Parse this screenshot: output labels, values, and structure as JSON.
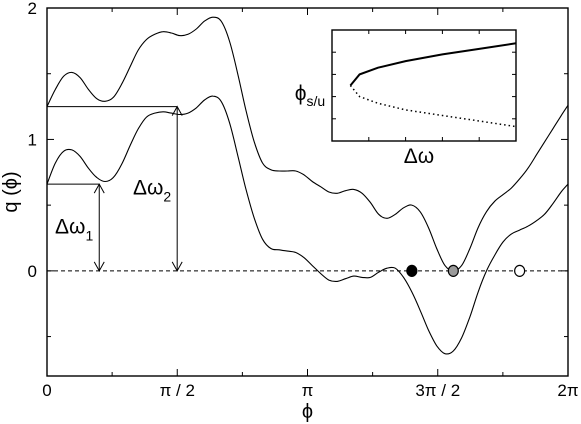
{
  "chart_data": {
    "type": "line",
    "xlabel": "ϕ",
    "ylabel": "q (ϕ)",
    "xlim": [
      0,
      6.2832
    ],
    "ylim": [
      -0.8,
      2.0
    ],
    "x_ticks": [
      {
        "value": 0,
        "label": "0"
      },
      {
        "value": 1.5708,
        "label": "π / 2"
      },
      {
        "value": 3.1416,
        "label": "π"
      },
      {
        "value": 4.7124,
        "label": "3π / 2"
      },
      {
        "value": 6.2832,
        "label": "2π"
      }
    ],
    "y_ticks": [
      {
        "value": 0,
        "label": "0"
      },
      {
        "value": 1,
        "label": "1"
      },
      {
        "value": 2,
        "label": "2"
      }
    ],
    "grid": false,
    "baseline": {
      "y": 0,
      "style": "dashed"
    },
    "series": [
      {
        "x": [
          0,
          0.1,
          0.2,
          0.3,
          0.4,
          0.5,
          0.6,
          0.7,
          0.8,
          0.9,
          1.0,
          1.1,
          1.2,
          1.3,
          1.4,
          1.5,
          1.6,
          1.7,
          1.8,
          1.9,
          2.0,
          2.1,
          2.2,
          2.3,
          2.4,
          2.5,
          2.6,
          2.7,
          2.8,
          2.9,
          3.0,
          3.1,
          3.2,
          3.3,
          3.4,
          3.5,
          3.6,
          3.7,
          3.8,
          3.9,
          4.0,
          4.1,
          4.2,
          4.3,
          4.4,
          4.5,
          4.6,
          4.7,
          4.8,
          4.9,
          5.0,
          5.1,
          5.2,
          5.3,
          5.4,
          5.5,
          5.6,
          5.7,
          5.8,
          5.9,
          6.0,
          6.1,
          6.2,
          6.2832
        ],
        "y": [
          1.25,
          1.38,
          1.48,
          1.51,
          1.47,
          1.38,
          1.31,
          1.29,
          1.32,
          1.42,
          1.55,
          1.68,
          1.76,
          1.8,
          1.82,
          1.81,
          1.79,
          1.8,
          1.84,
          1.9,
          1.93,
          1.9,
          1.75,
          1.5,
          1.22,
          0.98,
          0.82,
          0.77,
          0.76,
          0.76,
          0.76,
          0.73,
          0.68,
          0.64,
          0.6,
          0.59,
          0.61,
          0.62,
          0.59,
          0.52,
          0.43,
          0.4,
          0.43,
          0.48,
          0.5,
          0.45,
          0.33,
          0.17,
          0.04,
          0.0,
          0.04,
          0.17,
          0.33,
          0.45,
          0.53,
          0.58,
          0.63,
          0.7,
          0.78,
          0.88,
          0.98,
          1.08,
          1.18,
          1.26
        ]
      },
      {
        "x": [
          0,
          0.1,
          0.2,
          0.3,
          0.4,
          0.5,
          0.6,
          0.7,
          0.8,
          0.9,
          1.0,
          1.1,
          1.2,
          1.3,
          1.4,
          1.5,
          1.6,
          1.7,
          1.8,
          1.9,
          2.0,
          2.1,
          2.2,
          2.3,
          2.4,
          2.5,
          2.6,
          2.7,
          2.8,
          2.9,
          3.0,
          3.1,
          3.2,
          3.3,
          3.4,
          3.5,
          3.6,
          3.7,
          3.8,
          3.9,
          4.0,
          4.1,
          4.2,
          4.3,
          4.4,
          4.5,
          4.6,
          4.7,
          4.8,
          4.9,
          5.0,
          5.1,
          5.2,
          5.3,
          5.4,
          5.5,
          5.6,
          5.7,
          5.8,
          5.9,
          6.0,
          6.1,
          6.2,
          6.2832
        ],
        "y": [
          0.66,
          0.82,
          0.91,
          0.92,
          0.87,
          0.78,
          0.71,
          0.68,
          0.71,
          0.81,
          0.95,
          1.08,
          1.17,
          1.2,
          1.21,
          1.2,
          1.19,
          1.2,
          1.24,
          1.3,
          1.33,
          1.29,
          1.13,
          0.88,
          0.62,
          0.4,
          0.24,
          0.17,
          0.16,
          0.15,
          0.14,
          0.1,
          0.04,
          -0.02,
          -0.07,
          -0.08,
          -0.06,
          -0.04,
          -0.05,
          -0.05,
          -0.01,
          0.02,
          0.02,
          -0.05,
          -0.16,
          -0.3,
          -0.45,
          -0.57,
          -0.63,
          -0.61,
          -0.51,
          -0.35,
          -0.16,
          0.0,
          0.12,
          0.22,
          0.28,
          0.31,
          0.34,
          0.38,
          0.43,
          0.51,
          0.6,
          0.66
        ]
      }
    ],
    "fixed_points": [
      {
        "x": 4.4,
        "y": 0,
        "fill": "#000000"
      },
      {
        "x": 4.9,
        "y": 0,
        "fill": "#9a9a9a"
      },
      {
        "x": 5.7,
        "y": 0,
        "fill": "#ffffff"
      }
    ],
    "annotations": [
      {
        "main": "Δω",
        "sub": "1",
        "x_at": 0.63,
        "y_from": 0,
        "y_to": 0.66
      },
      {
        "main": "Δω",
        "sub": "2",
        "x_at": 1.57,
        "y_from": 0,
        "y_to": 1.25
      }
    ],
    "inset": {
      "xlabel": "Δω",
      "ylabel_main": "ϕ",
      "ylabel_sub": "s/u",
      "stable_branch": {
        "x": [
          0.1,
          0.15,
          0.25,
          0.4,
          0.6,
          0.8,
          1.0
        ],
        "y": [
          0.5,
          0.6,
          0.66,
          0.72,
          0.78,
          0.83,
          0.88
        ]
      },
      "unstable_branch": {
        "x": [
          0.1,
          0.15,
          0.25,
          0.4,
          0.6,
          0.8,
          1.0
        ],
        "y": [
          0.5,
          0.4,
          0.34,
          0.28,
          0.23,
          0.18,
          0.13
        ]
      }
    }
  }
}
